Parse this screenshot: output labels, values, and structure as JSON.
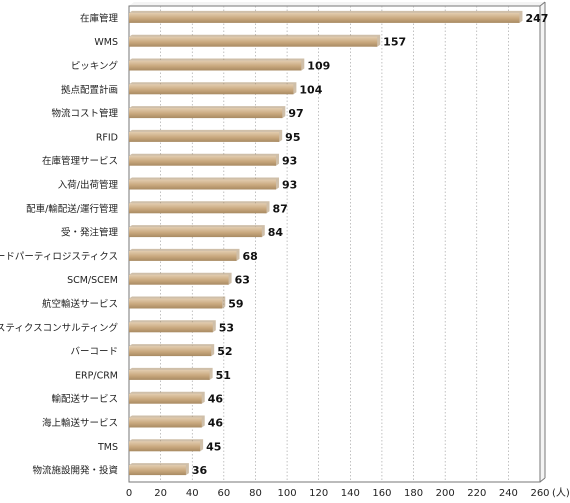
{
  "chart_data": {
    "type": "bar",
    "orientation": "horizontal",
    "title": "",
    "xlabel": "",
    "ylabel": "",
    "unit_label": "(人)",
    "categories": [
      "在庫管理",
      "WMS",
      "ピッキング",
      "拠点配置計画",
      "物流コスト管理",
      "RFID",
      "在庫管理サービス",
      "入荷/出荷管理",
      "配車/輸配送/運行管理",
      "受・発注管理",
      "サードパーティロジスティクス",
      "SCM/SCEM",
      "航空輸送サービス",
      "ロジスティクスコンサルティング",
      "バーコード",
      "ERP/CRM",
      "輸配送サービス",
      "海上輸送サービス",
      "TMS",
      "物流施設開発・投資"
    ],
    "values": [
      247,
      157,
      109,
      104,
      97,
      95,
      93,
      93,
      87,
      84,
      68,
      63,
      59,
      53,
      52,
      51,
      46,
      46,
      45,
      36
    ],
    "value_labels": [
      "247",
      "157",
      "109",
      "104",
      "97",
      "95",
      "93",
      "93",
      "87",
      "84",
      "68",
      "63",
      "59",
      "53",
      "52",
      "51",
      "46",
      "46",
      "45",
      "36"
    ],
    "xlim": [
      0,
      260
    ],
    "x_ticks": [
      "0",
      "20",
      "40",
      "60",
      "80",
      "100",
      "120",
      "140",
      "160",
      "180",
      "200",
      "220",
      "240",
      "260"
    ],
    "grid": true,
    "legend": "none",
    "colors": {
      "bar": "#C9A87E",
      "bar_light": "#E3CDB0",
      "bar_dark": "#A88A62",
      "grid": "#999999",
      "plot_bg": "#FFFFFF",
      "frame": "#777777"
    }
  }
}
